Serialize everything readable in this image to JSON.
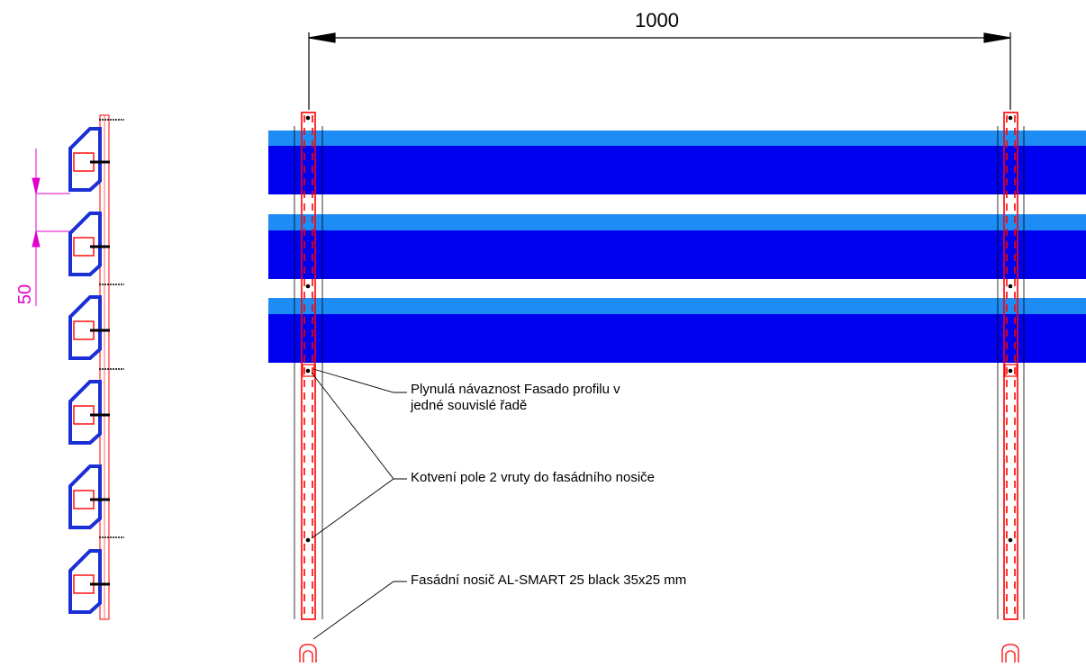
{
  "drawing": {
    "dimension_width": "1000",
    "dimension_spacing": "50",
    "notes": [
      "Plynulá návaznost Fasado profilu v",
      "jedné souvislé řadě",
      "Kotvení pole 2 vruty do fasádního nosiče",
      "Fasádní nosič AL-SMART 25 black 35x25 mm"
    ],
    "colors": {
      "board_dark": "#0000f0",
      "board_light": "#1e8cf5",
      "rail_red": "#ff0000",
      "dimension_magenta": "#e000d0",
      "profile_blue": "#1a2fd6"
    }
  }
}
